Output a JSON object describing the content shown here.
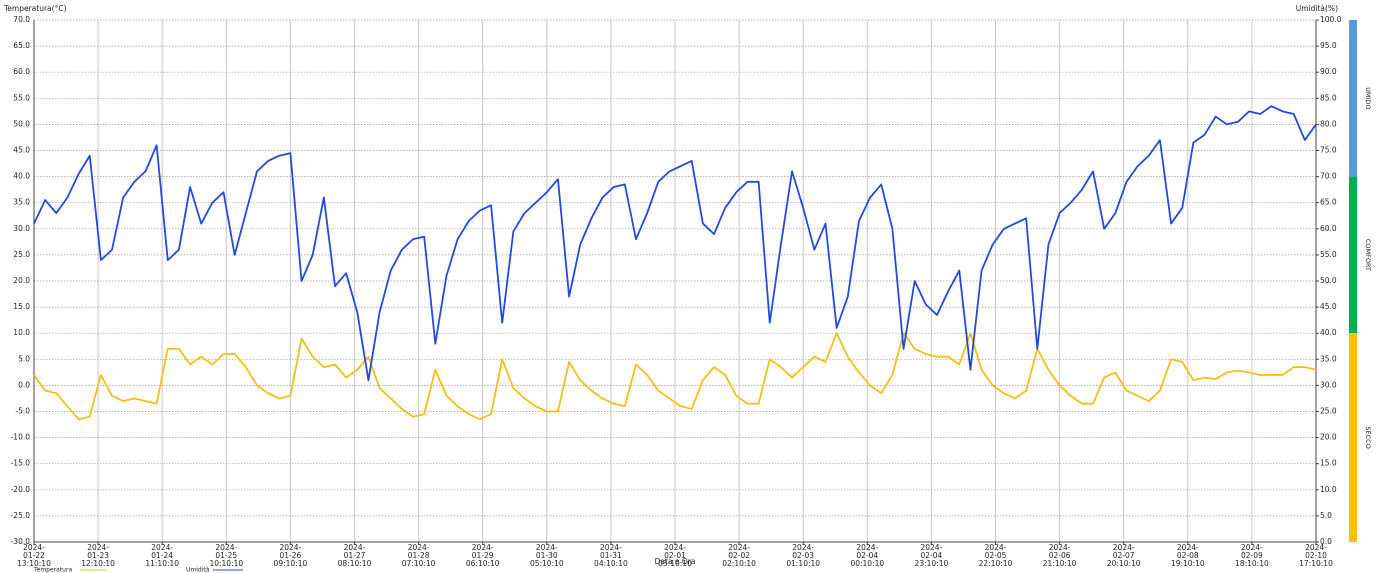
{
  "chart_data": {
    "type": "line",
    "y_label": "Temperatura(°C)",
    "y2_label": "Umidità(%)",
    "x_label": "Data e Ora",
    "grid": true,
    "legend": "bottom-left",
    "xlim": [
      "2024-01-22 13:10:10",
      "2024-02-10 17:10:10"
    ],
    "xticks": [
      "2024-01-22 13:10:10",
      "2024-01-23 12:10:10",
      "2024-01-24 11:10:10",
      "2024-01-25 10:10:10",
      "2024-01-26 09:10:10",
      "2024-01-27 08:10:10",
      "2024-01-28 07:10:10",
      "2024-01-29 06:10:10",
      "2024-01-30 05:10:10",
      "2024-01-31 04:10:10",
      "2024-02-01 03:10:10",
      "2024-02-02 02:10:10",
      "2024-02-03 01:10:10",
      "2024-02-04 00:10:10",
      "2024-02-04 23:10:10",
      "2024-02-05 22:10:10",
      "2024-02-06 21:10:10",
      "2024-02-07 20:10:10",
      "2024-02-08 19:10:10",
      "2024-02-09 18:10:10",
      "2024-02-10 17:10:10"
    ],
    "ylim": [
      -30,
      70
    ],
    "yticks": [
      {
        "value": -30,
        "label": "-30.0"
      },
      {
        "value": -25,
        "label": "-25.0"
      },
      {
        "value": -20,
        "label": "-20.0"
      },
      {
        "value": -15,
        "label": "-15.0"
      },
      {
        "value": -10,
        "label": "-10.0"
      },
      {
        "value": -5,
        "label": "-5.0"
      },
      {
        "value": 0,
        "label": "0.0"
      },
      {
        "value": 5,
        "label": "5.0"
      },
      {
        "value": 10,
        "label": "10.0"
      },
      {
        "value": 15,
        "label": "15.0"
      },
      {
        "value": 20,
        "label": "20.0"
      },
      {
        "value": 25,
        "label": "25.0"
      },
      {
        "value": 30,
        "label": "30.0"
      },
      {
        "value": 35,
        "label": "35.0"
      },
      {
        "value": 40,
        "label": "40.0"
      },
      {
        "value": 45,
        "label": "45.0"
      },
      {
        "value": 50,
        "label": "50.0"
      },
      {
        "value": 55,
        "label": "55.0"
      },
      {
        "value": 60,
        "label": "60.0"
      },
      {
        "value": 65,
        "label": "65.0"
      },
      {
        "value": 70,
        "label": "70.0"
      }
    ],
    "y2lim": [
      0,
      100
    ],
    "y2ticks": [
      {
        "value": 0,
        "label": "0.0"
      },
      {
        "value": 5,
        "label": "5.0"
      },
      {
        "value": 10,
        "label": "10.0"
      },
      {
        "value": 15,
        "label": "15.0"
      },
      {
        "value": 20,
        "label": "20.0"
      },
      {
        "value": 25,
        "label": "25.0"
      },
      {
        "value": 30,
        "label": "30.0"
      },
      {
        "value": 35,
        "label": "35.0"
      },
      {
        "value": 40,
        "label": "40.0"
      },
      {
        "value": 45,
        "label": "45.0"
      },
      {
        "value": 50,
        "label": "50.0"
      },
      {
        "value": 55,
        "label": "55.0"
      },
      {
        "value": 60,
        "label": "60.0"
      },
      {
        "value": 65,
        "label": "65.0"
      },
      {
        "value": 70,
        "label": "70.0"
      },
      {
        "value": 75,
        "label": "75.0"
      },
      {
        "value": 80,
        "label": "80.0"
      },
      {
        "value": 85,
        "label": "85.0"
      },
      {
        "value": 90,
        "label": "90.0"
      },
      {
        "value": 95,
        "label": "95.0"
      },
      {
        "value": 100,
        "label": "100.0"
      }
    ],
    "zones": [
      {
        "name": "UMIDO",
        "from": 70,
        "to": 100,
        "color": "#5b9bd5"
      },
      {
        "name": "COMFORT",
        "from": 40,
        "to": 70,
        "color": "#00b050"
      },
      {
        "name": "SECCO",
        "from": 0,
        "to": 40,
        "color": "#ffc000"
      }
    ],
    "x": [
      "2024-01-22 13:10:10",
      "2024-01-22 17:10:10",
      "2024-01-22 21:10:10",
      "2024-01-23 01:10:10",
      "2024-01-23 05:10:10",
      "2024-01-23 09:10:10",
      "2024-01-23 13:10:10",
      "2024-01-23 17:10:10",
      "2024-01-23 21:10:10",
      "2024-01-24 01:10:10",
      "2024-01-24 05:10:10",
      "2024-01-24 09:10:10",
      "2024-01-24 13:10:10",
      "2024-01-24 17:10:10",
      "2024-01-24 21:10:10",
      "2024-01-25 01:10:10",
      "2024-01-25 05:10:10",
      "2024-01-25 09:10:10",
      "2024-01-25 13:10:10",
      "2024-01-25 17:10:10",
      "2024-01-25 21:10:10",
      "2024-01-26 01:10:10",
      "2024-01-26 05:10:10",
      "2024-01-26 09:10:10",
      "2024-01-26 13:10:10",
      "2024-01-26 17:10:10",
      "2024-01-26 21:10:10",
      "2024-01-27 01:10:10",
      "2024-01-27 05:10:10",
      "2024-01-27 09:10:10",
      "2024-01-27 13:10:10",
      "2024-01-27 17:10:10",
      "2024-01-27 21:10:10",
      "2024-01-28 01:10:10",
      "2024-01-28 05:10:10",
      "2024-01-28 09:10:10",
      "2024-01-28 13:10:10",
      "2024-01-28 17:10:10",
      "2024-01-28 21:10:10",
      "2024-01-29 01:10:10",
      "2024-01-29 05:10:10",
      "2024-01-29 09:10:10",
      "2024-01-29 13:10:10",
      "2024-01-29 17:10:10",
      "2024-01-29 21:10:10",
      "2024-01-30 01:10:10",
      "2024-01-30 05:10:10",
      "2024-01-30 09:10:10",
      "2024-01-30 13:10:10",
      "2024-01-30 17:10:10",
      "2024-01-30 21:10:10",
      "2024-01-31 01:10:10",
      "2024-01-31 05:10:10",
      "2024-01-31 09:10:10",
      "2024-01-31 13:10:10",
      "2024-01-31 17:10:10",
      "2024-01-31 21:10:10",
      "2024-02-01 01:10:10",
      "2024-02-01 05:10:10",
      "2024-02-01 09:10:10",
      "2024-02-01 13:10:10",
      "2024-02-01 17:10:10",
      "2024-02-01 21:10:10",
      "2024-02-02 01:10:10",
      "2024-02-02 05:10:10",
      "2024-02-02 09:10:10",
      "2024-02-02 13:10:10",
      "2024-02-02 17:10:10",
      "2024-02-02 21:10:10",
      "2024-02-03 01:10:10",
      "2024-02-03 05:10:10",
      "2024-02-03 09:10:10",
      "2024-02-03 13:10:10",
      "2024-02-03 17:10:10",
      "2024-02-03 21:10:10",
      "2024-02-04 01:10:10",
      "2024-02-04 05:10:10",
      "2024-02-04 09:10:10",
      "2024-02-04 13:10:10",
      "2024-02-04 17:10:10",
      "2024-02-04 21:10:10",
      "2024-02-05 01:10:10",
      "2024-02-05 05:10:10",
      "2024-02-05 09:10:10",
      "2024-02-05 13:10:10",
      "2024-02-05 17:10:10",
      "2024-02-05 21:10:10",
      "2024-02-06 01:10:10",
      "2024-02-06 05:10:10",
      "2024-02-06 09:10:10",
      "2024-02-06 13:10:10",
      "2024-02-06 17:10:10",
      "2024-02-06 21:10:10",
      "2024-02-07 01:10:10",
      "2024-02-07 05:10:10",
      "2024-02-07 09:10:10",
      "2024-02-07 13:10:10",
      "2024-02-07 17:10:10",
      "2024-02-07 21:10:10",
      "2024-02-08 01:10:10",
      "2024-02-08 05:10:10",
      "2024-02-08 09:10:10",
      "2024-02-08 13:10:10",
      "2024-02-08 17:10:10",
      "2024-02-08 21:10:10",
      "2024-02-09 01:10:10",
      "2024-02-09 05:10:10",
      "2024-02-09 09:10:10",
      "2024-02-09 13:10:10",
      "2024-02-09 17:10:10",
      "2024-02-09 21:10:10",
      "2024-02-10 01:10:10",
      "2024-02-10 05:10:10",
      "2024-02-10 09:10:10",
      "2024-02-10 13:10:10",
      "2024-02-10 17:10:10"
    ],
    "series": [
      {
        "name": "Temperatura",
        "color": "#f7be16",
        "values": [
          2,
          -1,
          -1.5,
          -4,
          -6.5,
          -6,
          2,
          -2,
          -3,
          -2.5,
          -3,
          -3.5,
          7,
          7,
          4,
          5.5,
          4,
          6,
          6,
          3.5,
          0,
          -1.5,
          -2.5,
          -2,
          9,
          5.5,
          3.5,
          4,
          1.5,
          3,
          5.5,
          -0.5,
          -2.5,
          -4.5,
          -6,
          -5.5,
          3,
          -2,
          -4,
          -5.5,
          -6.5,
          -5.5,
          5,
          -0.5,
          -2.5,
          -4,
          -5,
          -5,
          4.5,
          1,
          -1,
          -2.5,
          -3.5,
          -4,
          4,
          2,
          -1,
          -2.5,
          -4,
          -4.5,
          1,
          3.5,
          2,
          -2,
          -3.5,
          -3.5,
          5,
          3.5,
          1.5,
          3.5,
          5.5,
          4.5,
          10,
          5.5,
          2.5,
          0,
          -1.5,
          2,
          10,
          7,
          6,
          5.5,
          5.5,
          4,
          10,
          3,
          0,
          -1.5,
          -2.5,
          -1,
          7,
          3,
          0,
          -2,
          -3.5,
          -3.5,
          1.5,
          2.5,
          -1,
          -2,
          -3,
          -1,
          5,
          4.5,
          1,
          1.5,
          1.2,
          2.5,
          2.8,
          2.5,
          2,
          2,
          2,
          3.5,
          3.5,
          3
        ]
      },
      {
        "name": "Umidità",
        "color": "#2449e0",
        "axis": "y2",
        "values": [
          61,
          65.5,
          63,
          66,
          70.5,
          74,
          54,
          56,
          66,
          69,
          71,
          76,
          54,
          56,
          68,
          61,
          65,
          67,
          55,
          63,
          71,
          73,
          74,
          74.5,
          50,
          55,
          66,
          49,
          51.5,
          44,
          31,
          44,
          52,
          56,
          58,
          58.5,
          38,
          51,
          58,
          61.5,
          63.5,
          64.5,
          42,
          59.5,
          63,
          65,
          67,
          69.5,
          47,
          57,
          62,
          66,
          68,
          68.5,
          58,
          63,
          69,
          71,
          72,
          73,
          61,
          59,
          64,
          67,
          69,
          69,
          42,
          57,
          71,
          64,
          56,
          61,
          41,
          47,
          61.5,
          66,
          68.5,
          60,
          37,
          50,
          45.5,
          43.5,
          48,
          52,
          33,
          52,
          57,
          60,
          61,
          62,
          37,
          57,
          63,
          65,
          67.5,
          71,
          60,
          63,
          69,
          72,
          74,
          77,
          61,
          64,
          76.5,
          78,
          81.5,
          80,
          80.5,
          82.5,
          82,
          83.5,
          82.5,
          82,
          77,
          80
        ]
      }
    ]
  }
}
